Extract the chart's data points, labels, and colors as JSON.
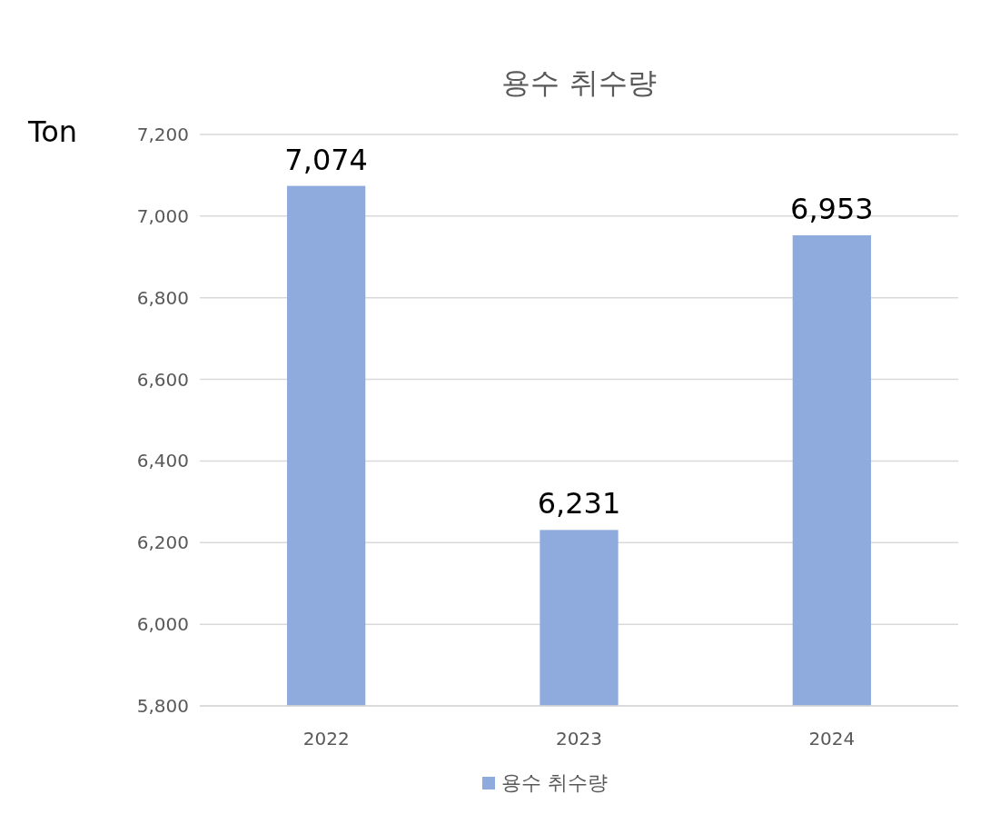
{
  "chart_data": {
    "type": "bar",
    "title": "용수 취수량",
    "ylabel": "Ton",
    "categories": [
      "2022",
      "2023",
      "2024"
    ],
    "series": [
      {
        "name": "용수 취수량",
        "color": "#8faadc",
        "values": [
          7074,
          6231,
          6953
        ],
        "value_labels": [
          "7,074",
          "6,231",
          "6,953"
        ]
      }
    ],
    "ylim": [
      5800,
      7200
    ],
    "yticks": [
      {
        "value": 5800,
        "label": "5,800"
      },
      {
        "value": 6000,
        "label": "6,000"
      },
      {
        "value": 6200,
        "label": "6,200"
      },
      {
        "value": 6400,
        "label": "6,400"
      },
      {
        "value": 6600,
        "label": "6,600"
      },
      {
        "value": 6800,
        "label": "6,800"
      },
      {
        "value": 7000,
        "label": "7,000"
      },
      {
        "value": 7200,
        "label": "7,200"
      }
    ],
    "grid": "y",
    "legend": "bottom"
  }
}
